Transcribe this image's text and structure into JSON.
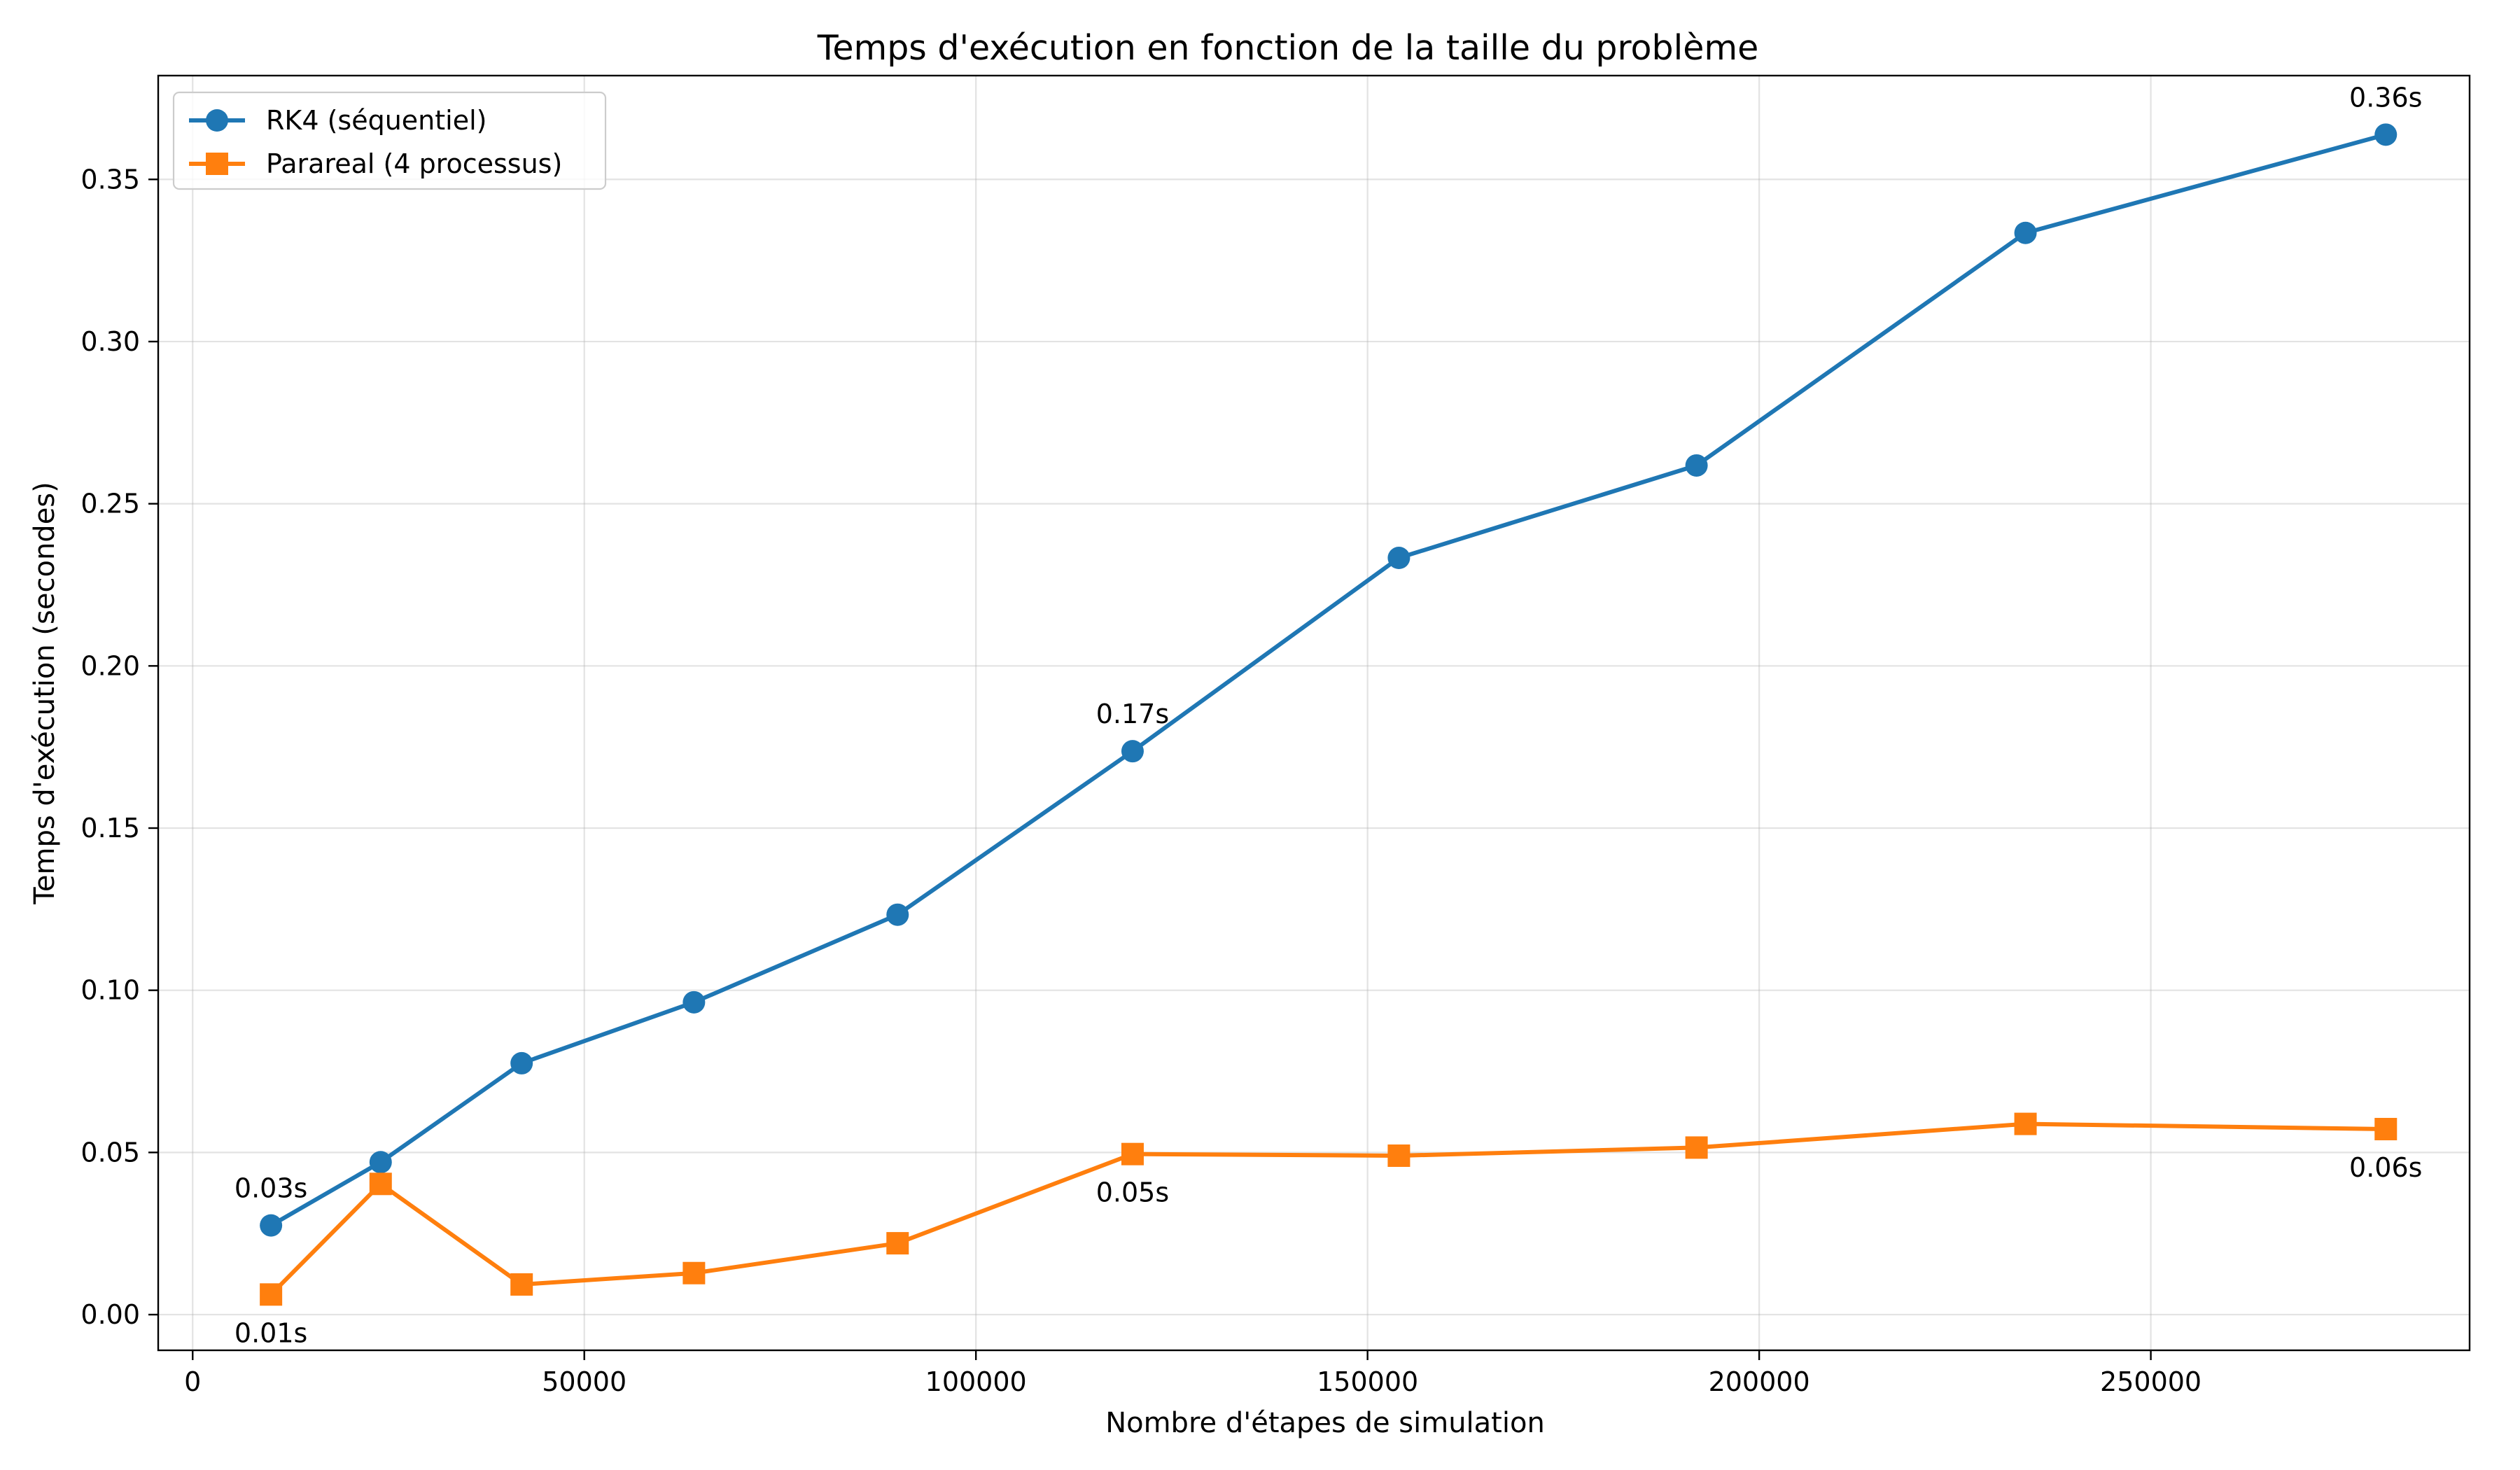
{
  "chart_data": {
    "type": "line",
    "title": "Temps d'exécution en fonction de la taille du problème",
    "xlabel": "Nombre d'étapes de simulation",
    "ylabel": "Temps d'exécution (secondes)",
    "xlim": [
      -4400,
      290700
    ],
    "ylim": [
      -0.011,
      0.382
    ],
    "xticks": [
      {
        "value": 0,
        "label": "0"
      },
      {
        "value": 50000,
        "label": "50000"
      },
      {
        "value": 100000,
        "label": "100000"
      },
      {
        "value": 150000,
        "label": "150000"
      },
      {
        "value": 200000,
        "label": "200000"
      },
      {
        "value": 250000,
        "label": "250000"
      }
    ],
    "yticks": [
      {
        "value": 0.0,
        "label": "0.00"
      },
      {
        "value": 0.05,
        "label": "0.05"
      },
      {
        "value": 0.1,
        "label": "0.10"
      },
      {
        "value": 0.15,
        "label": "0.15"
      },
      {
        "value": 0.2,
        "label": "0.20"
      },
      {
        "value": 0.25,
        "label": "0.25"
      },
      {
        "value": 0.3,
        "label": "0.30"
      },
      {
        "value": 0.35,
        "label": "0.35"
      }
    ],
    "grid": true,
    "legend_position": "top-left",
    "x": [
      10000,
      24000,
      42000,
      64000,
      90000,
      120000,
      154000,
      192000,
      234000,
      280000
    ],
    "series": [
      {
        "name": "RK4 (séquentiel)",
        "color": "#1f77b4",
        "marker": "circle",
        "values": [
          0.0275,
          0.047,
          0.0775,
          0.0963,
          0.1233,
          0.1737,
          0.2333,
          0.2618,
          0.3335,
          0.3638
        ],
        "annotations": [
          {
            "index": 0,
            "label": "0.03s",
            "placement": "above"
          },
          {
            "index": 5,
            "label": "0.17s",
            "placement": "above"
          },
          {
            "index": 9,
            "label": "0.36s",
            "placement": "above"
          }
        ]
      },
      {
        "name": "Parareal (4 processus)",
        "color": "#ff7f0e",
        "marker": "square",
        "values": [
          0.0062,
          0.0403,
          0.0093,
          0.0128,
          0.022,
          0.0495,
          0.049,
          0.0515,
          0.0588,
          0.0572
        ],
        "annotations": [
          {
            "index": 0,
            "label": "0.01s",
            "placement": "below"
          },
          {
            "index": 5,
            "label": "0.05s",
            "placement": "below"
          },
          {
            "index": 9,
            "label": "0.06s",
            "placement": "below"
          }
        ]
      }
    ]
  }
}
